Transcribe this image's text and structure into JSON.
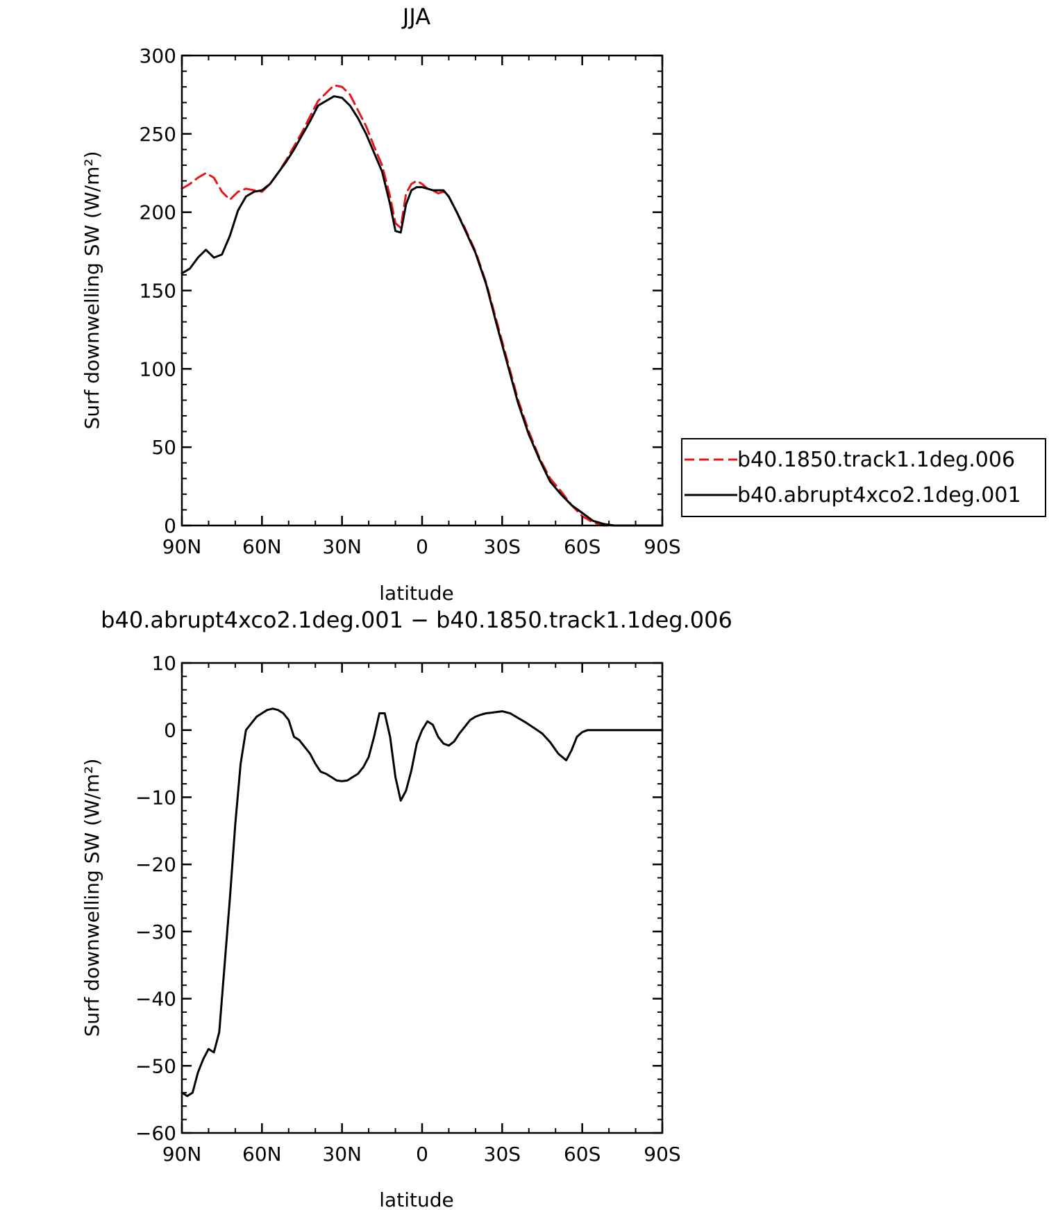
{
  "chart_data": [
    {
      "type": "line",
      "title": "JJA",
      "xlabel": "latitude",
      "ylabel": "Surf downwelling SW (W/m²)",
      "xlim": [
        90,
        -90
      ],
      "ylim": [
        0,
        300
      ],
      "xticks": [
        90,
        60,
        30,
        0,
        -30,
        -60,
        -90
      ],
      "xtick_labels": [
        "90N",
        "60N",
        "30N",
        "0",
        "30S",
        "60S",
        "90S"
      ],
      "yticks": [
        0,
        50,
        100,
        150,
        200,
        250,
        300
      ],
      "ytick_labels": [
        "0",
        "50",
        "100",
        "150",
        "200",
        "250",
        "300"
      ],
      "legend_position": "right",
      "series": [
        {
          "name": "b40.1850.track1.1deg.006",
          "color": "#e8161b",
          "dash": "dashed",
          "x": [
            90,
            87,
            84,
            81,
            78,
            75,
            72,
            69,
            66,
            63,
            60,
            57,
            54,
            51,
            48,
            45,
            42,
            39,
            36,
            33,
            30,
            27,
            24,
            21,
            18,
            15,
            12,
            10,
            8,
            6,
            4,
            2,
            0,
            -2,
            -4,
            -6,
            -8,
            -10,
            -13,
            -16,
            -20,
            -24,
            -28,
            -32,
            -36,
            -40,
            -44,
            -48,
            -52,
            -56,
            -60,
            -64,
            -68,
            -72,
            -76,
            -80,
            -84,
            -90
          ],
          "y": [
            215,
            218,
            222,
            225,
            222,
            213,
            208,
            213,
            215,
            214,
            213,
            218,
            225,
            233,
            242,
            251,
            261,
            271,
            276,
            281,
            280,
            275,
            265,
            255,
            242,
            230,
            210,
            193,
            190,
            212,
            218,
            220,
            218,
            215,
            214,
            212,
            213,
            210,
            200,
            190,
            175,
            155,
            130,
            105,
            80,
            60,
            43,
            30,
            22,
            13,
            6,
            2,
            0,
            0,
            0,
            0,
            0,
            0
          ]
        },
        {
          "name": "b40.abrupt4xco2.1deg.001",
          "color": "#000000",
          "dash": "solid",
          "x": [
            90,
            87,
            84,
            81,
            78,
            75,
            72,
            69,
            66,
            63,
            60,
            57,
            54,
            51,
            48,
            45,
            42,
            39,
            36,
            33,
            30,
            27,
            24,
            21,
            18,
            15,
            12,
            10,
            8,
            6,
            4,
            2,
            0,
            -2,
            -4,
            -6,
            -8,
            -10,
            -13,
            -16,
            -20,
            -24,
            -28,
            -32,
            -36,
            -40,
            -44,
            -48,
            -52,
            -56,
            -60,
            -64,
            -68,
            -72,
            -76,
            -80,
            -84,
            -90
          ],
          "y": [
            161,
            164,
            171,
            176,
            171,
            173,
            185,
            201,
            210,
            213,
            214,
            218,
            225,
            232,
            240,
            249,
            258,
            268,
            271,
            274,
            273,
            268,
            260,
            250,
            238,
            226,
            205,
            188,
            187,
            205,
            214,
            216,
            216,
            215,
            214,
            214,
            214,
            210,
            200,
            189,
            174,
            154,
            128,
            103,
            78,
            58,
            42,
            28,
            20,
            13,
            8,
            3,
            1,
            0,
            0,
            0,
            0,
            0
          ]
        }
      ]
    },
    {
      "type": "line",
      "title": "b40.abrupt4xco2.1deg.001 − b40.1850.track1.1deg.006",
      "xlabel": "latitude",
      "ylabel": "Surf downwelling SW (W/m²)",
      "xlim": [
        90,
        -90
      ],
      "ylim": [
        -60,
        10
      ],
      "xticks": [
        90,
        60,
        30,
        0,
        -30,
        -60,
        -90
      ],
      "xtick_labels": [
        "90N",
        "60N",
        "30N",
        "0",
        "30S",
        "60S",
        "90S"
      ],
      "yticks": [
        10,
        0,
        -10,
        -20,
        -30,
        -40,
        -50,
        -60
      ],
      "ytick_labels": [
        "10",
        "0",
        "−10",
        "−20",
        "−30",
        "−40",
        "−50",
        "−60"
      ],
      "series": [
        {
          "color": "#000000",
          "dash": "solid",
          "x": [
            90,
            88,
            86,
            84,
            82,
            80,
            78,
            76,
            74,
            72,
            70,
            68,
            66,
            64,
            62,
            60,
            58,
            56,
            54,
            52,
            50,
            48,
            46,
            44,
            42,
            40,
            38,
            36,
            34,
            32,
            30,
            28,
            26,
            24,
            22,
            20,
            18,
            16,
            14,
            12,
            10,
            8,
            6,
            4,
            2,
            0,
            -2,
            -4,
            -6,
            -8,
            -10,
            -12,
            -14,
            -16,
            -18,
            -20,
            -22,
            -24,
            -26,
            -28,
            -30,
            -33,
            -36,
            -39,
            -42,
            -45,
            -48,
            -51,
            -54,
            -56,
            -58,
            -60,
            -62,
            -64,
            -66,
            -68,
            -70,
            -74,
            -78,
            -82,
            -86,
            -90
          ],
          "y": [
            -54,
            -54.5,
            -54,
            -51,
            -49,
            -47.5,
            -48,
            -45,
            -35,
            -25,
            -14,
            -5,
            0,
            1,
            2,
            2.5,
            3,
            3.2,
            3,
            2.5,
            1.5,
            -1,
            -1.5,
            -2.5,
            -3.5,
            -5,
            -6.2,
            -6.5,
            -7,
            -7.5,
            -7.6,
            -7.5,
            -7,
            -6.5,
            -5.5,
            -4,
            -1,
            2.5,
            2.5,
            -1,
            -7,
            -10.5,
            -9,
            -6,
            -2,
            0,
            1.3,
            0.8,
            -1,
            -2,
            -2.3,
            -1.7,
            -0.5,
            0.5,
            1.5,
            2,
            2.3,
            2.5,
            2.6,
            2.7,
            2.8,
            2.5,
            1.8,
            1.1,
            0.3,
            -0.5,
            -1.8,
            -3.5,
            -4.5,
            -3,
            -1,
            -0.3,
            0,
            0,
            0,
            0,
            0,
            0,
            0,
            0,
            0,
            0
          ]
        }
      ]
    }
  ]
}
